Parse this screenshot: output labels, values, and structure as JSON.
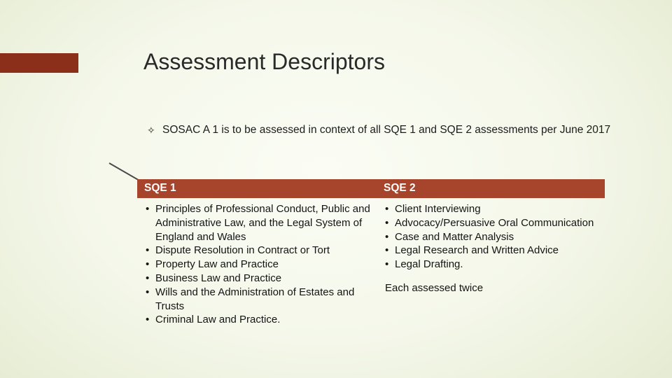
{
  "title": "Assessment Descriptors",
  "intro_bullet_glyph": "✧",
  "intro": "SOSAC A 1 is to be assessed in context of all SQE 1 and SQE 2 assessments per June 2017",
  "table": {
    "headers": {
      "col1": "SQE 1",
      "col2": "SQE 2"
    },
    "sqe1_items": [
      "Principles of Professional Conduct, Public and Administrative Law, and the Legal System of England and Wales",
      "Dispute Resolution in Contract or Tort",
      "Property Law and Practice",
      "Business Law and Practice",
      "Wills and the Administration of Estates and Trusts",
      "Criminal Law and Practice."
    ],
    "sqe2_items": [
      "Client Interviewing",
      "Advocacy/Persuasive Oral Communication",
      "Case and Matter Analysis",
      "Legal Research and Written Advice",
      "Legal Drafting."
    ],
    "sqe2_note": "Each assessed twice"
  },
  "colors": {
    "header_bg": "#a7442c",
    "accent_bar": "#8b2e1a",
    "text": "#1c1c1c"
  }
}
